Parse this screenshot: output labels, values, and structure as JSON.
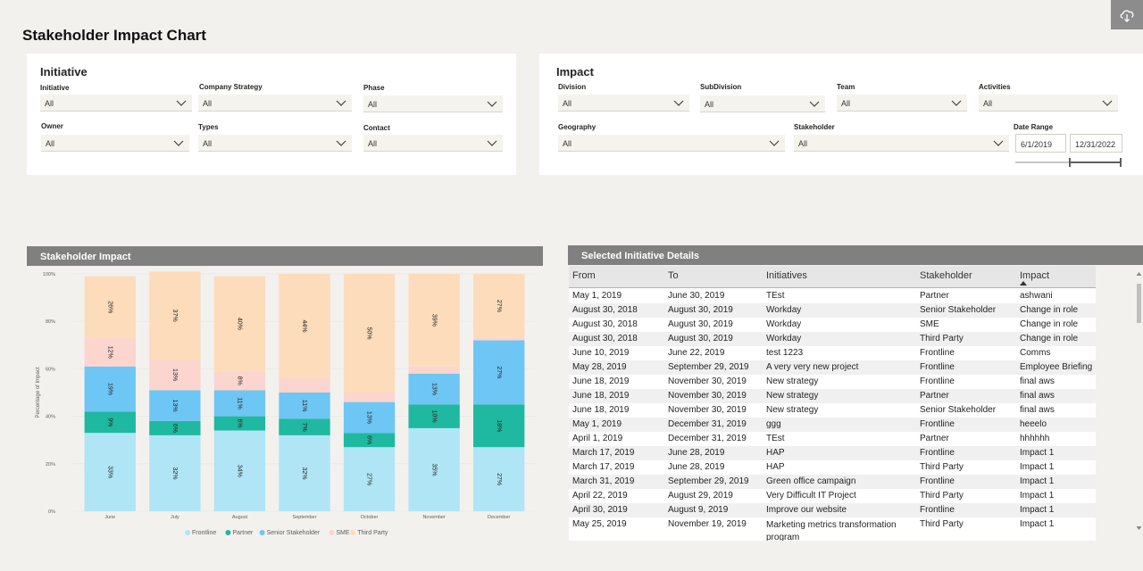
{
  "page_title": "Stakeholder Impact Chart",
  "icons": {
    "top_right": "cloud-download-icon",
    "dropdown": "chevron-down-icon",
    "sort": "sort-ascending-icon"
  },
  "initiative_panel": {
    "title": "Initiative",
    "filters": [
      {
        "label": "Initiative",
        "value": "All"
      },
      {
        "label": "Company Strategy",
        "value": "All"
      },
      {
        "label": "Phase",
        "value": "All"
      },
      {
        "label": "Owner",
        "value": "All"
      },
      {
        "label": "Types",
        "value": "All"
      },
      {
        "label": "Contact",
        "value": "All"
      }
    ]
  },
  "impact_panel": {
    "title": "Impact",
    "filters": [
      {
        "label": "Division",
        "value": "All"
      },
      {
        "label": "SubDivision",
        "value": "All"
      },
      {
        "label": "Team",
        "value": "All"
      },
      {
        "label": "Activities",
        "value": "All"
      },
      {
        "label": "Geography",
        "value": "All"
      },
      {
        "label": "Stakeholder",
        "value": "All"
      }
    ],
    "date_range": {
      "label": "Date Range",
      "start": "6/1/2019",
      "end": "12/31/2022",
      "slider_start_fraction": 0.5,
      "slider_end_fraction": 1.0
    }
  },
  "chart_header": "Stakeholder Impact",
  "chart_data": {
    "type": "bar",
    "stacked": "percent",
    "categories": [
      "June",
      "July",
      "August",
      "September",
      "October",
      "November",
      "December"
    ],
    "ylabel": "Percentage of Impact",
    "xlabel": "",
    "ylim": [
      0,
      100
    ],
    "yticks": [
      "0%",
      "20%",
      "40%",
      "60%",
      "80%",
      "100%"
    ],
    "legend_position": "bottom",
    "series": [
      {
        "name": "Frontline",
        "color": "#b0e5f6",
        "values": [
          33,
          32,
          34,
          32,
          27,
          35,
          27
        ],
        "labels": [
          "33%",
          "32%",
          "34%",
          "32%",
          "27%",
          "35%",
          "27%"
        ]
      },
      {
        "name": "Partner",
        "color": "#1fb8a0",
        "values": [
          9,
          6,
          6,
          7,
          6,
          10,
          18
        ],
        "labels": [
          "9%",
          "6%",
          "6%",
          "7%",
          "6%",
          "10%",
          "18%"
        ]
      },
      {
        "name": "Senior Stakeholder",
        "color": "#6ec6f4",
        "values": [
          19,
          13,
          11,
          11,
          13,
          13,
          27
        ],
        "labels": [
          "19%",
          "13%",
          "11%",
          "11%",
          "13%",
          "13%",
          "27%"
        ]
      },
      {
        "name": "SME",
        "color": "#fcd5cf",
        "values": [
          12,
          13,
          8,
          6,
          4,
          3,
          1
        ],
        "labels": [
          "12%",
          "13%",
          "8%",
          "",
          "",
          "",
          ""
        ]
      },
      {
        "name": "Third Party",
        "color": "#fcdcbb",
        "values": [
          26,
          37,
          40,
          44,
          50,
          39,
          27
        ],
        "labels": [
          "26%",
          "37%",
          "40%",
          "44%",
          "50%",
          "39%",
          "27%"
        ]
      }
    ]
  },
  "table": {
    "header": "Selected  Initiative  Details",
    "columns": [
      "From",
      "To",
      "Initiatives",
      "Stakeholder",
      "Impact"
    ],
    "rows": [
      [
        "May 1, 2019",
        "June 30, 2019",
        "TEst",
        "Partner",
        "ashwani"
      ],
      [
        "August 30, 2018",
        "August 30, 2019",
        "Workday",
        "Senior Stakeholder",
        "Change in role"
      ],
      [
        "August 30, 2018",
        "August 30, 2019",
        "Workday",
        "SME",
        "Change in role"
      ],
      [
        "August 30, 2018",
        "August 30, 2019",
        "Workday",
        "Third Party",
        "Change in role"
      ],
      [
        "June 10, 2019",
        "June 22, 2019",
        "test 1223",
        "Frontline",
        "Comms"
      ],
      [
        "May 28, 2019",
        "September 29, 2019",
        "A very very new project",
        "Frontline",
        "Employee Briefing"
      ],
      [
        "June 18, 2019",
        "November 30, 2019",
        "New strategy",
        "Frontline",
        "final aws"
      ],
      [
        "June 18, 2019",
        "November 30, 2019",
        "New strategy",
        "Partner",
        "final aws"
      ],
      [
        "June 18, 2019",
        "November 30, 2019",
        "New strategy",
        "Senior Stakeholder",
        "final aws"
      ],
      [
        "May 1, 2019",
        "December 31, 2019",
        "ggg",
        "Frontline",
        "heeelo"
      ],
      [
        "April 1, 2019",
        "December 31, 2019",
        "TEst",
        "Partner",
        "hhhhhh"
      ],
      [
        "March 17, 2019",
        "June 28, 2019",
        "HAP",
        "Frontline",
        "Impact 1"
      ],
      [
        "March 17, 2019",
        "June 28, 2019",
        "HAP",
        "Third Party",
        "Impact 1"
      ],
      [
        "March 31, 2019",
        "September 29, 2019",
        "Green office campaign",
        "Frontline",
        "Impact 1"
      ],
      [
        "April 22, 2019",
        "August 29, 2019",
        "Very Difficult IT Project",
        "Third Party",
        "Impact 1"
      ],
      [
        "April 30, 2019",
        "August 9, 2019",
        "Improve our website",
        "Frontline",
        "Impact 1"
      ],
      [
        "May 25, 2019",
        "November 19, 2019",
        "Marketing metrics transformation program",
        "Third Party",
        "Impact 1"
      ]
    ]
  }
}
